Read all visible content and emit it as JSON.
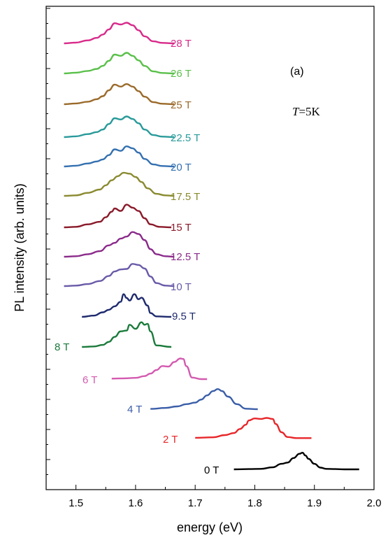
{
  "chart_data": {
    "type": "line",
    "xlabel": "energy (eV)",
    "ylabel": "PL intensity (arb. units)",
    "xlim": [
      1.45,
      2.0
    ],
    "xticks": [
      "1.5",
      "1.6",
      "1.7",
      "1.8",
      "1.9",
      "2.0"
    ],
    "y_tick_labels_shown": false,
    "grid": false,
    "annotations": {
      "panel": "(a)",
      "temperature_symbol": "T",
      "temperature_value": "=5K"
    },
    "series": [
      {
        "name": "0 T",
        "color": "#000000",
        "x": [
          1.765,
          1.79,
          1.81,
          1.83,
          1.845,
          1.855,
          1.865,
          1.875,
          1.88,
          1.885,
          1.89,
          1.9,
          1.91,
          1.92,
          1.935,
          1.95,
          1.975
        ],
        "y": [
          0,
          0.01,
          0.02,
          0.08,
          0.22,
          0.27,
          0.45,
          0.62,
          0.66,
          0.55,
          0.42,
          0.22,
          0.07,
          0.02,
          0.01,
          0,
          0
        ]
      },
      {
        "name": "2 T",
        "color": "#e8262a",
        "x": [
          1.7,
          1.73,
          1.75,
          1.765,
          1.775,
          1.785,
          1.79,
          1.8,
          1.81,
          1.82,
          1.83,
          1.835,
          1.845,
          1.855,
          1.87,
          1.895
        ],
        "y": [
          0.03,
          0.05,
          0.14,
          0.22,
          0.38,
          0.55,
          0.72,
          0.8,
          0.78,
          0.82,
          0.78,
          0.58,
          0.25,
          0.06,
          0.02,
          0.02
        ]
      },
      {
        "name": "4 T",
        "color": "#3a5ea8",
        "x": [
          1.625,
          1.65,
          1.67,
          1.685,
          1.7,
          1.71,
          1.72,
          1.73,
          1.738,
          1.745,
          1.755,
          1.77,
          1.785,
          1.805
        ],
        "y": [
          0.01,
          0.05,
          0.11,
          0.2,
          0.26,
          0.38,
          0.55,
          0.72,
          0.8,
          0.72,
          0.5,
          0.2,
          0.02,
          0
        ]
      },
      {
        "name": "6 T",
        "color": "#d35ab0",
        "x": [
          1.56,
          1.58,
          1.6,
          1.615,
          1.625,
          1.635,
          1.645,
          1.655,
          1.665,
          1.675,
          1.68,
          1.685,
          1.695,
          1.71,
          1.72
        ],
        "y": [
          0.02,
          0.03,
          0.05,
          0.12,
          0.22,
          0.36,
          0.52,
          0.5,
          0.68,
          0.82,
          0.8,
          0.52,
          0.06,
          0,
          0
        ]
      },
      {
        "name": "8 T",
        "color": "#1a7a3a",
        "x": [
          1.51,
          1.53,
          1.545,
          1.555,
          1.565,
          1.575,
          1.585,
          1.59,
          1.6,
          1.61,
          1.615,
          1.62,
          1.625,
          1.635,
          1.66
        ],
        "y": [
          0,
          0.02,
          0.08,
          0.2,
          0.4,
          0.62,
          0.65,
          0.88,
          0.72,
          0.98,
          0.88,
          0.92,
          0.62,
          0.06,
          0
        ]
      },
      {
        "name": "9.5 T",
        "color": "#1e2a6e",
        "x": [
          1.51,
          1.53,
          1.545,
          1.555,
          1.565,
          1.575,
          1.58,
          1.585,
          1.59,
          1.598,
          1.605,
          1.61,
          1.62,
          1.625,
          1.635,
          1.66
        ],
        "y": [
          0,
          0.05,
          0.18,
          0.28,
          0.42,
          0.6,
          0.9,
          0.75,
          0.65,
          0.9,
          0.7,
          0.76,
          0.45,
          0.15,
          0.02,
          0
        ]
      },
      {
        "name": "10 T",
        "color": "#6a5aa8",
        "x": [
          1.48,
          1.5,
          1.52,
          1.54,
          1.555,
          1.565,
          1.575,
          1.585,
          1.595,
          1.605,
          1.615,
          1.625,
          1.635,
          1.65,
          1.665
        ],
        "y": [
          0,
          0.02,
          0.08,
          0.2,
          0.4,
          0.58,
          0.66,
          0.68,
          0.88,
          0.84,
          0.7,
          0.38,
          0.12,
          0.02,
          0
        ]
      },
      {
        "name": "12.5 T",
        "color": "#8a2a8a",
        "x": [
          1.48,
          1.5,
          1.52,
          1.54,
          1.555,
          1.565,
          1.575,
          1.585,
          1.595,
          1.605,
          1.615,
          1.625,
          1.635,
          1.65,
          1.665
        ],
        "y": [
          0,
          0.02,
          0.1,
          0.22,
          0.45,
          0.55,
          0.72,
          0.8,
          0.98,
          0.9,
          0.66,
          0.3,
          0.1,
          0.02,
          0
        ]
      },
      {
        "name": "15 T",
        "color": "#8a1a2a",
        "x": [
          1.48,
          1.5,
          1.52,
          1.54,
          1.55,
          1.56,
          1.565,
          1.575,
          1.585,
          1.595,
          1.605,
          1.615,
          1.625,
          1.64,
          1.66
        ],
        "y": [
          0,
          0.02,
          0.12,
          0.22,
          0.4,
          0.62,
          0.75,
          0.65,
          0.9,
          0.78,
          0.65,
          0.36,
          0.12,
          0.02,
          0
        ]
      },
      {
        "name": "17.5 T",
        "color": "#8a8a30",
        "x": [
          1.48,
          1.5,
          1.52,
          1.54,
          1.55,
          1.56,
          1.57,
          1.58,
          1.59,
          1.6,
          1.61,
          1.62,
          1.635,
          1.65,
          1.665
        ],
        "y": [
          0,
          0.02,
          0.12,
          0.25,
          0.42,
          0.62,
          0.78,
          0.92,
          0.88,
          0.75,
          0.55,
          0.3,
          0.08,
          0.02,
          0
        ]
      },
      {
        "name": "20 T",
        "color": "#3470b0",
        "x": [
          1.48,
          1.5,
          1.52,
          1.535,
          1.545,
          1.555,
          1.565,
          1.575,
          1.585,
          1.595,
          1.605,
          1.615,
          1.63,
          1.645,
          1.665
        ],
        "y": [
          0,
          0.03,
          0.12,
          0.2,
          0.28,
          0.45,
          0.68,
          0.62,
          0.8,
          0.72,
          0.55,
          0.3,
          0.08,
          0.02,
          0
        ]
      },
      {
        "name": "22.5 T",
        "color": "#2a9a9a",
        "x": [
          1.48,
          1.5,
          1.52,
          1.535,
          1.545,
          1.555,
          1.565,
          1.575,
          1.585,
          1.595,
          1.605,
          1.615,
          1.63,
          1.645,
          1.665
        ],
        "y": [
          0,
          0.03,
          0.12,
          0.2,
          0.3,
          0.52,
          0.75,
          0.7,
          0.82,
          0.72,
          0.55,
          0.3,
          0.08,
          0.02,
          0
        ]
      },
      {
        "name": "25 T",
        "color": "#9a6a2a",
        "x": [
          1.48,
          1.5,
          1.52,
          1.535,
          1.545,
          1.555,
          1.565,
          1.575,
          1.585,
          1.595,
          1.605,
          1.615,
          1.63,
          1.645,
          1.665
        ],
        "y": [
          0,
          0.03,
          0.1,
          0.2,
          0.32,
          0.55,
          0.78,
          0.7,
          0.8,
          0.7,
          0.52,
          0.3,
          0.08,
          0.02,
          0
        ]
      },
      {
        "name": "26 T",
        "color": "#5ac04a",
        "x": [
          1.48,
          1.5,
          1.52,
          1.535,
          1.545,
          1.555,
          1.565,
          1.575,
          1.585,
          1.595,
          1.605,
          1.615,
          1.63,
          1.645,
          1.665
        ],
        "y": [
          0,
          0.03,
          0.1,
          0.18,
          0.3,
          0.5,
          0.75,
          0.7,
          0.82,
          0.7,
          0.52,
          0.3,
          0.08,
          0.02,
          0
        ]
      },
      {
        "name": "28 T",
        "color": "#d82a8a",
        "x": [
          1.48,
          1.5,
          1.52,
          1.535,
          1.545,
          1.555,
          1.565,
          1.575,
          1.585,
          1.595,
          1.605,
          1.615,
          1.63,
          1.645,
          1.665
        ],
        "y": [
          0,
          0.03,
          0.12,
          0.22,
          0.35,
          0.55,
          0.8,
          0.75,
          0.82,
          0.72,
          0.52,
          0.28,
          0.08,
          0.02,
          0
        ]
      }
    ]
  }
}
